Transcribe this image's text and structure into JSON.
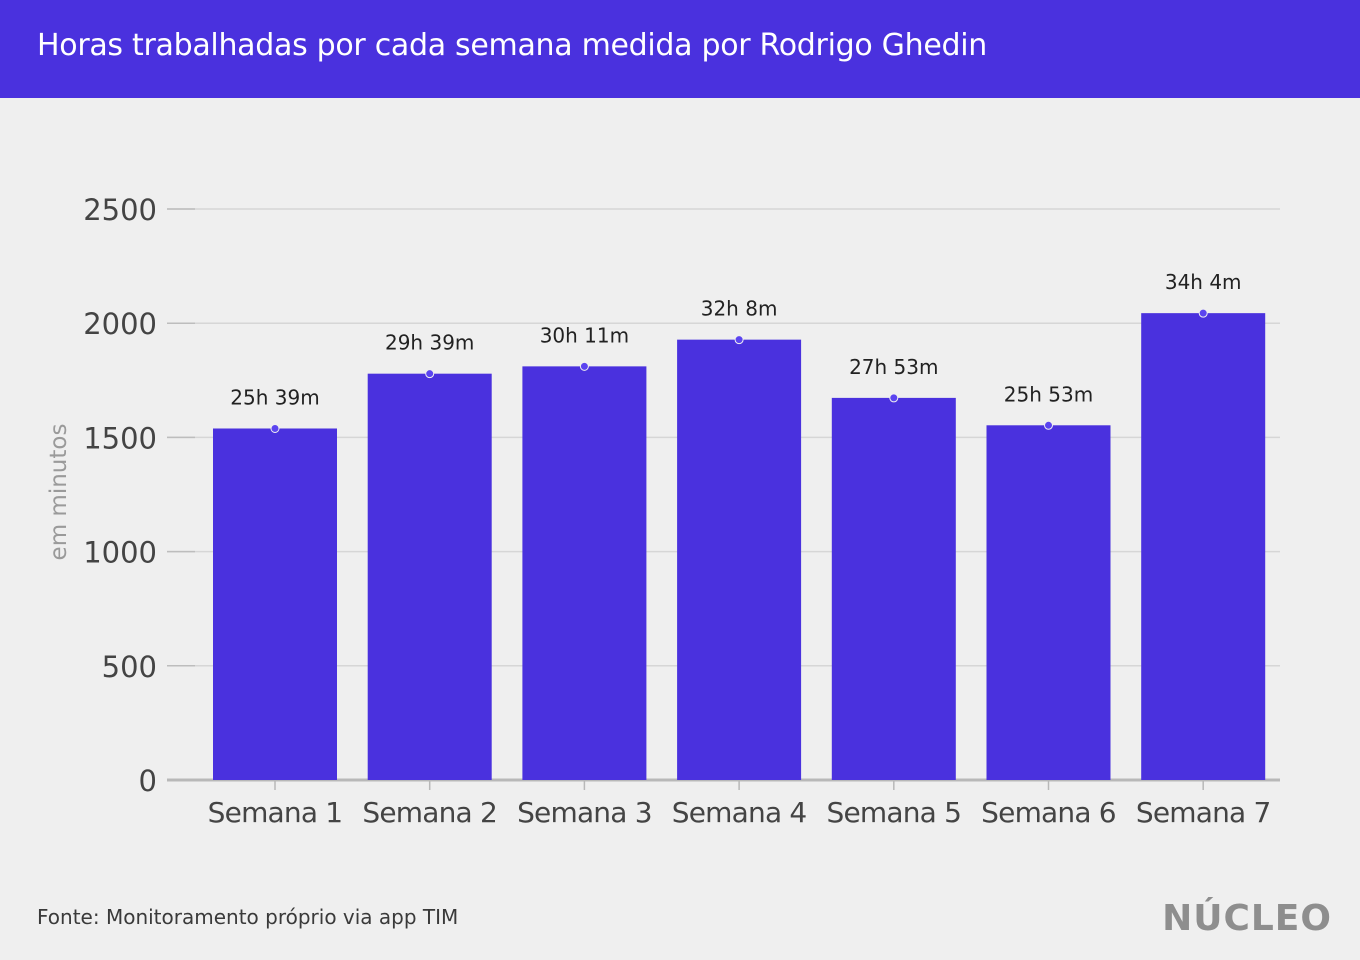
{
  "header": {
    "title": "Horas trabalhadas por cada semana medida por Rodrigo Ghedin"
  },
  "footer": {
    "source": "Fonte: Monitoramento próprio via app TIM",
    "logo": "NÚCLEO"
  },
  "colors": {
    "accent": "#4a31de",
    "bar": "#4a31de",
    "background": "#efefef",
    "grid": "#d6d6d6",
    "axis_text": "#444444",
    "ylabel_text": "#9a9a9a"
  },
  "chart_data": {
    "type": "bar",
    "categories": [
      "Semana 1",
      "Semana 2",
      "Semana 3",
      "Semana 4",
      "Semana 5",
      "Semana 6",
      "Semana 7"
    ],
    "values": [
      1539,
      1779,
      1811,
      1928,
      1673,
      1553,
      2044
    ],
    "data_labels": [
      "25h 39m",
      "29h 39m",
      "30h 11m",
      "32h 8m",
      "27h 53m",
      "25h 53m",
      "34h 4m"
    ],
    "ylabel": "em minutos",
    "ylim": [
      0,
      2500
    ],
    "yticks": [
      0,
      500,
      1000,
      1500,
      2000,
      2500
    ],
    "grid": true,
    "legend": "none"
  }
}
